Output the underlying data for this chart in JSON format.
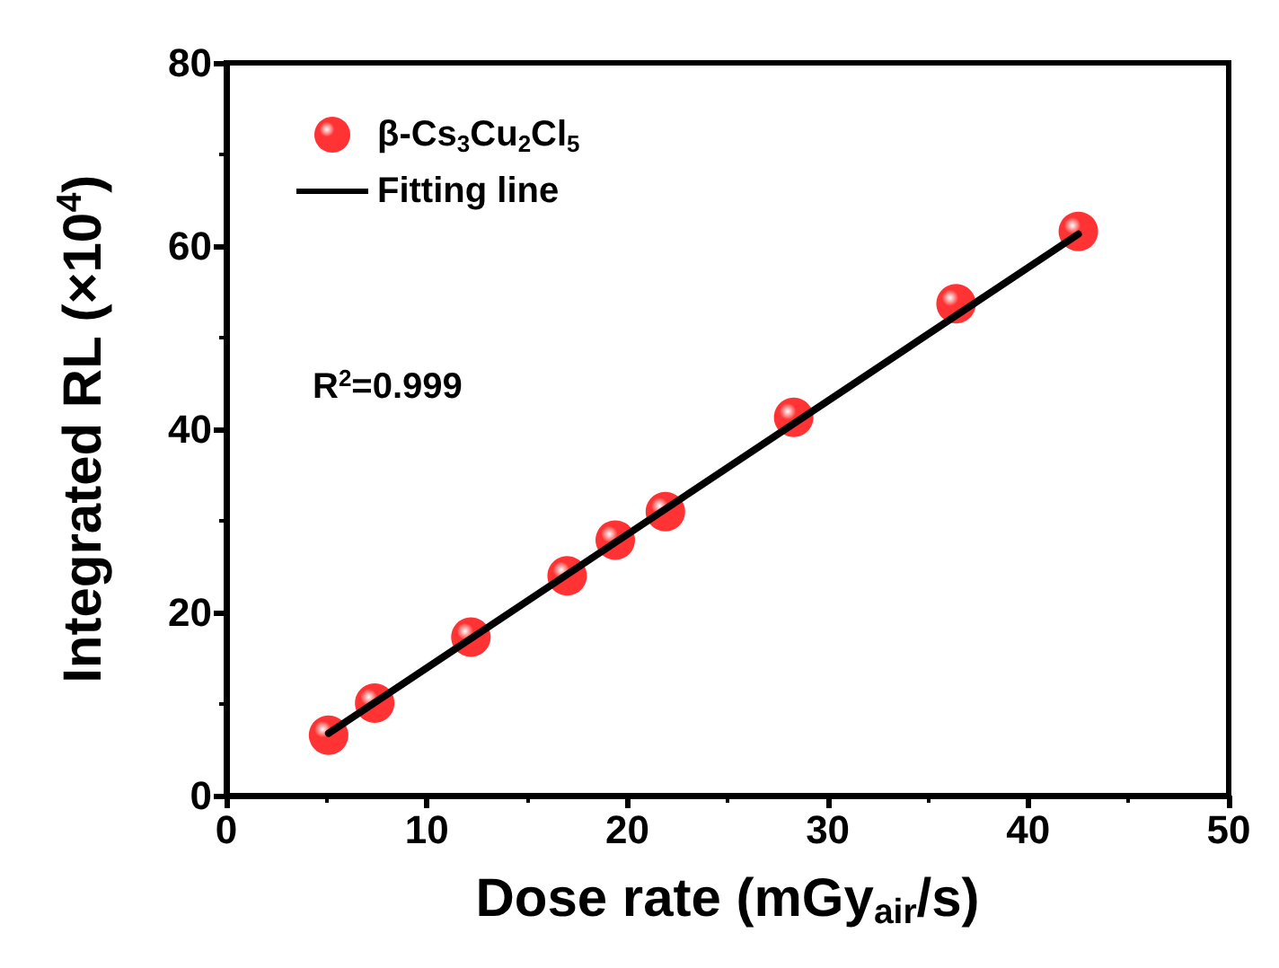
{
  "chart_data": {
    "type": "scatter",
    "xlabel": "Dose rate (mGy$_{air}$/s)",
    "ylabel": "Integrated RL (×10$^{4}$)",
    "xlim": [
      0,
      50
    ],
    "xticks": [
      0,
      10,
      20,
      30,
      40,
      50
    ],
    "ylim": [
      0,
      80
    ],
    "yticks": [
      0,
      20,
      40,
      60,
      80
    ],
    "grid": false,
    "legend": "top left",
    "annotations": [
      "R$^{2}$=0.999"
    ],
    "series": [
      {
        "name": "β-Cs$_{3}$Cu$_{2}$Cl$_{5}$",
        "marker": "circle",
        "color": "#ff0000",
        "x": [
          5.1,
          7.4,
          12.2,
          17.0,
          19.4,
          21.9,
          28.3,
          36.4,
          42.5
        ],
        "values": [
          6.6,
          10.1,
          17.3,
          24.0,
          27.9,
          31.0,
          41.3,
          53.7,
          61.6
        ]
      },
      {
        "name": "Fitting line",
        "type": "line",
        "marker": "none",
        "color": "#000000",
        "line_style": "solid",
        "x": [
          5.1,
          42.5
        ],
        "values": [
          6.8,
          61.3
        ]
      }
    ]
  }
}
